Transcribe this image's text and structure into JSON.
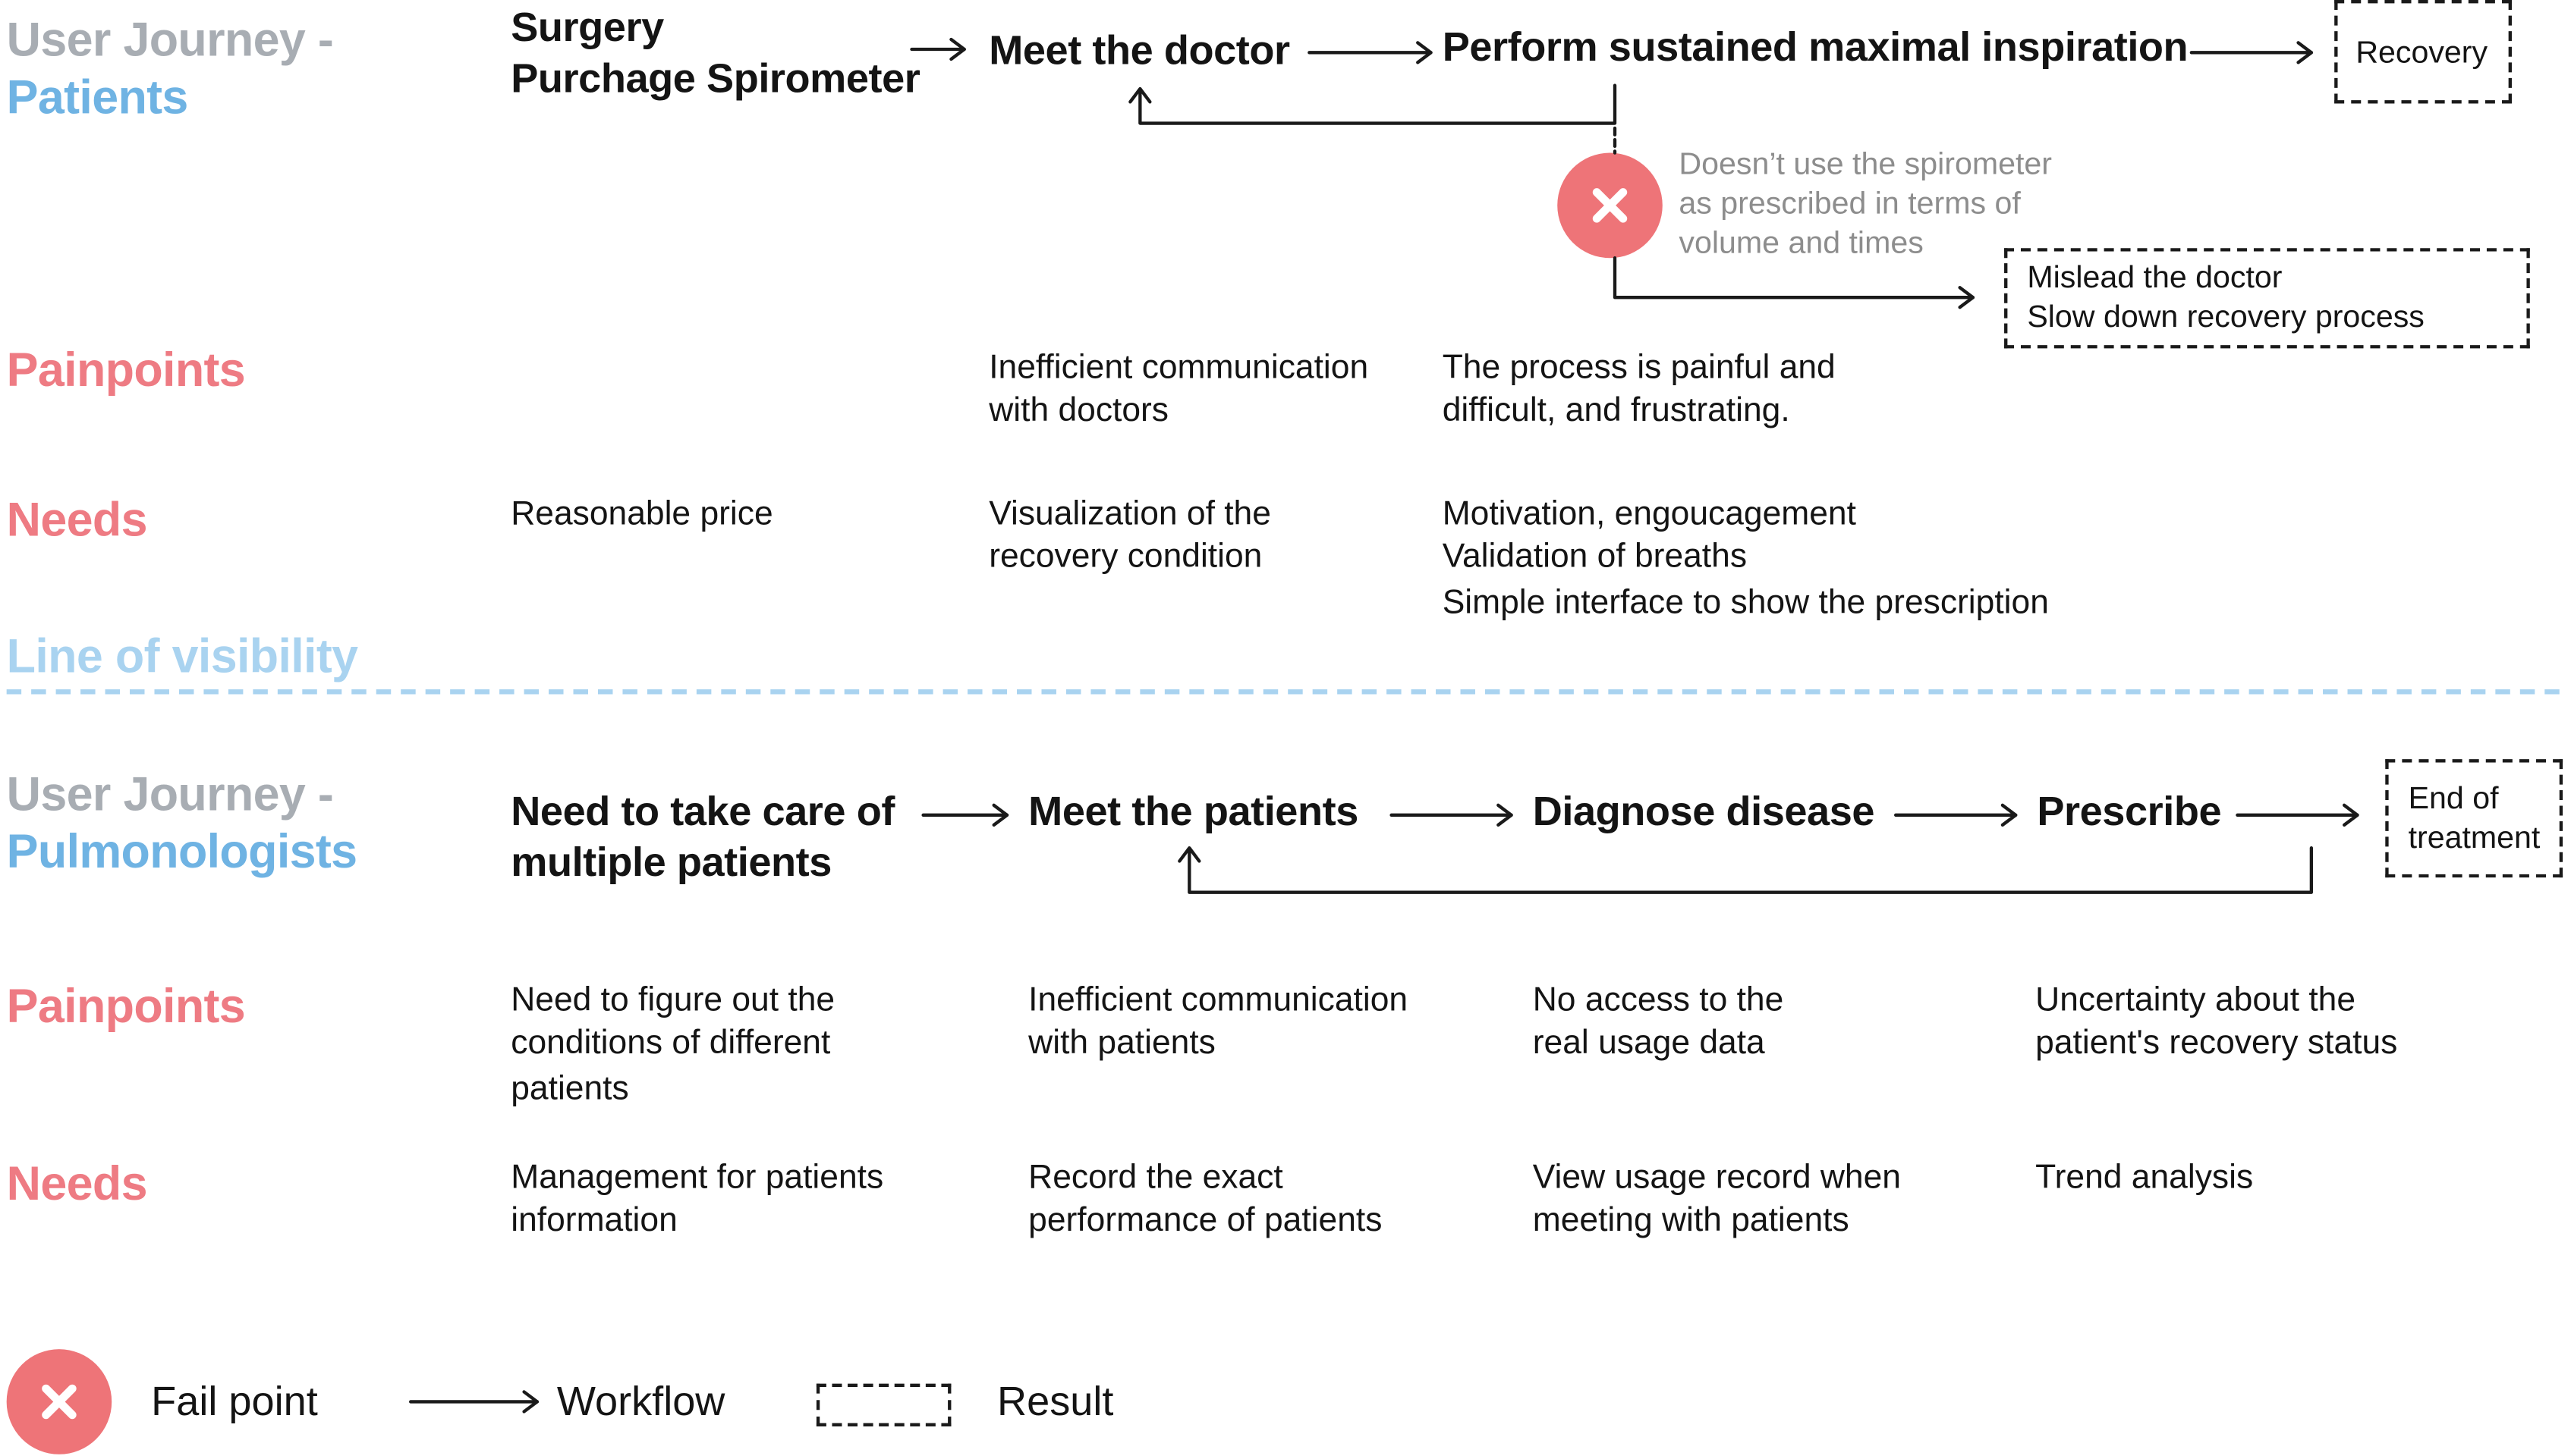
{
  "patients": {
    "label_line1": "User Journey -",
    "label_line2": "Patients",
    "steps": [
      {
        "line1": "Surgery",
        "line2": "Purchage Spirometer"
      },
      {
        "line1": "Meet the doctor"
      },
      {
        "line1": "Perform sustained maximal inspiration"
      }
    ],
    "result": "Recovery",
    "fail_point": {
      "note_lines": [
        "Doesn’t use the spirometer",
        "as prescribed in terms of",
        "volume and times"
      ],
      "result_lines": [
        "Mislead the doctor",
        "Slow down recovery process"
      ]
    },
    "painpoints_label": "Painpoints",
    "painpoints": [
      {
        "lines": []
      },
      {
        "lines": [
          "Inefficient communication",
          "with doctors"
        ]
      },
      {
        "lines": [
          "The process is painful and",
          "difficult, and frustrating."
        ]
      }
    ],
    "needs_label": "Needs",
    "needs": [
      {
        "lines": [
          "Reasonable price"
        ]
      },
      {
        "lines": [
          "Visualization of the",
          "recovery condition"
        ]
      },
      {
        "lines": [
          "Motivation, engoucagement",
          "Validation of breaths",
          "Simple interface to show the prescription"
        ]
      }
    ]
  },
  "visibility_line": {
    "label": "Line of visibility",
    "color": "#a9d3f0"
  },
  "pulmonologists": {
    "label_line1": "User Journey -",
    "label_line2": "Pulmonologists",
    "steps": [
      {
        "line1": "Need to take care of",
        "line2": "multiple patients"
      },
      {
        "line1": "Meet the patients"
      },
      {
        "line1": "Diagnose disease"
      },
      {
        "line1": "Prescribe"
      }
    ],
    "result_lines": [
      "End of",
      "treatment"
    ],
    "painpoints_label": "Painpoints",
    "painpoints": [
      {
        "lines": [
          "Need to figure out the",
          "conditions of different",
          "patients"
        ]
      },
      {
        "lines": [
          "Inefficient communication",
          "with patients"
        ]
      },
      {
        "lines": [
          "No access to the",
          "real usage data"
        ]
      },
      {
        "lines": [
          "Uncertainty about the",
          "patient's recovery status"
        ]
      }
    ],
    "needs_label": "Needs",
    "needs": [
      {
        "lines": [
          "Management for patients",
          "information"
        ]
      },
      {
        "lines": [
          "Record the exact",
          "performance of patients"
        ]
      },
      {
        "lines": [
          "View usage record when",
          "meeting with patients"
        ]
      },
      {
        "lines": [
          "Trend analysis"
        ]
      }
    ]
  },
  "legend": {
    "fail_point": "Fail point",
    "workflow": "Workflow",
    "result": "Result"
  },
  "colors": {
    "journey_gray": "#a8adb3",
    "journey_blue": "#6fb3e3",
    "pink": "#ee7b83",
    "fail_red": "#ee7478",
    "ink": "#141414"
  },
  "icons": {
    "fail": "close-x-icon",
    "workflow": "arrow-right-icon",
    "result": "dashed-box-icon"
  }
}
